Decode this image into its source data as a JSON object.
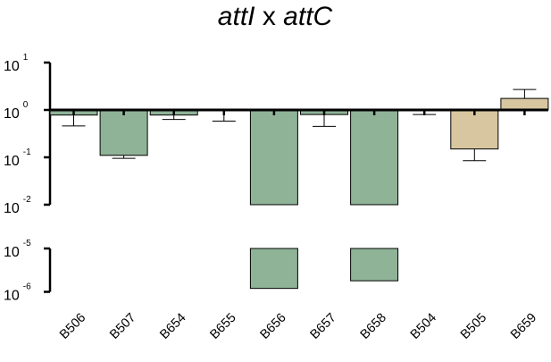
{
  "chart_data": {
    "type": "bar",
    "title": {
      "italic_part_1": "attI",
      "sep": " x ",
      "italic_part_2": "attC"
    },
    "scale": "log",
    "baseline": 1,
    "axis_break": true,
    "upper_axis": {
      "range": [
        0.01,
        10
      ],
      "ticks": [
        {
          "base": "10",
          "exp": "1",
          "value": 10
        },
        {
          "base": "10",
          "exp": "0",
          "value": 1
        },
        {
          "base": "10",
          "exp": "-1",
          "value": 0.1
        },
        {
          "base": "10",
          "exp": "-2",
          "value": 0.01
        }
      ]
    },
    "lower_axis": {
      "range": [
        1e-06,
        1e-05
      ],
      "ticks": [
        {
          "base": "10",
          "exp": "-5",
          "value": 1e-05
        },
        {
          "base": "10",
          "exp": "-6",
          "value": 1e-06
        }
      ]
    },
    "categories": [
      "B506",
      "B507",
      "B654",
      "B655",
      "B656",
      "B657",
      "B658",
      "B504",
      "B505",
      "B659"
    ],
    "values": [
      0.78,
      0.11,
      0.78,
      0.98,
      1.2e-06,
      0.8,
      1.8e-06,
      0.98,
      0.15,
      1.75
    ],
    "error_ends": [
      0.46,
      0.095,
      0.63,
      0.58,
      null,
      0.45,
      null,
      0.8,
      0.085,
      2.7
    ],
    "group": [
      "a",
      "a",
      "a",
      "a",
      "a",
      "a",
      "a",
      "b",
      "b",
      "b"
    ],
    "colors": {
      "a": "#8fb397",
      "b": "#d8c6a0",
      "edge": "#000000"
    },
    "grid": false,
    "legend": "none"
  }
}
